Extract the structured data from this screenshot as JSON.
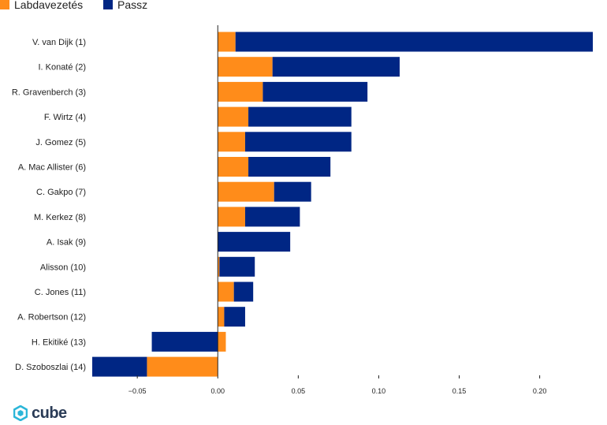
{
  "chart_data": {
    "type": "bar",
    "orientation": "horizontal",
    "stacked": true,
    "categories": [
      "V. van Dijk (1)",
      "I. Konaté (2)",
      "R. Gravenberch (3)",
      "F. Wirtz (4)",
      "J. Gomez (5)",
      "A. Mac Allister (6)",
      "C. Gakpo (7)",
      "M. Kerkez (8)",
      "A. Isak (9)",
      "Alisson (10)",
      "C. Jones (11)",
      "A. Robertson (12)",
      "H. Ekitiké (13)",
      "D. Szoboszlai (14)"
    ],
    "series": [
      {
        "name": "Labdavezetés",
        "color": "#ff8c1a",
        "values": [
          0.011,
          0.034,
          0.028,
          0.019,
          0.017,
          0.019,
          0.035,
          0.017,
          0.0,
          0.001,
          0.01,
          0.004,
          0.005,
          -0.044
        ]
      },
      {
        "name": "Passz",
        "color": "#002684",
        "values": [
          0.222,
          0.079,
          0.065,
          0.064,
          0.066,
          0.051,
          0.023,
          0.034,
          0.045,
          0.022,
          0.012,
          0.013,
          -0.041,
          -0.034
        ]
      }
    ],
    "xlim": [
      -0.078,
      0.233
    ],
    "xticks": [
      -0.05,
      0.0,
      0.05,
      0.1,
      0.15,
      0.2
    ],
    "xtick_labels": [
      "−0.05",
      "0.00",
      "0.05",
      "0.10",
      "0.15",
      "0.20"
    ],
    "title": "",
    "xlabel": "",
    "ylabel": "",
    "grid": false,
    "legend_position": "top-left"
  },
  "branding": {
    "logo_text": "cube",
    "logo_color": "#2a3b56",
    "logo_accent": "#2bb6d8"
  }
}
